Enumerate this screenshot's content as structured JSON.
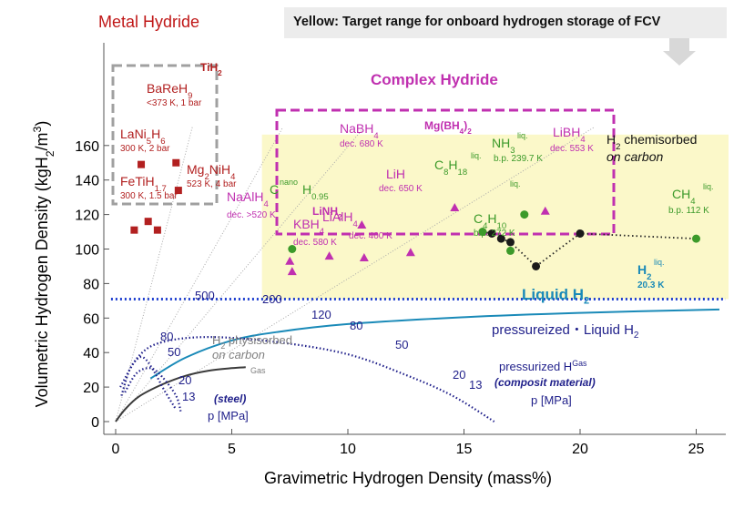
{
  "banner": {
    "text": "Yellow: Target range for onboard hydrogen storage of FCV"
  },
  "titles": {
    "metal_hydride": "Metal Hydride",
    "complex_hydride": "Complex Hydride",
    "liquid_h2": "Liquid H",
    "liquid_h2_sub": "2",
    "pressurized_liquid_prefix": "pressureized・Liquid H",
    "pressurized_liquid_sub": "2"
  },
  "colors": {
    "metal": "#b22020",
    "complex": "#c030b0",
    "green": "#3c9a2a",
    "navy": "#1f1f8a",
    "liquid": "#1a8ab8",
    "target_fill": "#fbf8c9",
    "target_line": "#1f3fd0",
    "physisorbed": "#808080"
  },
  "chart_data": {
    "type": "scatter",
    "xlabel": "Gravimetric Hydrogen Density (mass%)",
    "ylabel": "Volumetric Hydrogen Density (kgH2/m3)",
    "ylabel_parts": {
      "a": "Volumetric Hydrogen Density (kgH",
      "b": "2",
      "c": "/m",
      "d": "3",
      "e": ")"
    },
    "xlim": [
      0,
      26
    ],
    "ylim": [
      0,
      160
    ],
    "xticks": [
      0,
      5,
      10,
      15,
      20,
      25
    ],
    "yticks": [
      0,
      20,
      40,
      60,
      80,
      100,
      120,
      140,
      160
    ],
    "target_region": {
      "x": [
        6.3,
        26
      ],
      "y": [
        71,
        160
      ]
    },
    "target_line_y": 71,
    "metal_hydrides": [
      {
        "x": 2.6,
        "y": 150,
        "label": "TiH2"
      },
      {
        "x": 1.1,
        "y": 149,
        "label": "BaReH9"
      },
      {
        "x": 2.7,
        "y": 134,
        "label": "Mg2NiH4"
      },
      {
        "x": 1.4,
        "y": 116,
        "label": "LaNi5H6"
      },
      {
        "x": 0.8,
        "y": 111,
        "label": "FeTiH1.7"
      },
      {
        "x": 1.8,
        "y": 111,
        "label": "FeTiH1.7"
      }
    ],
    "complex_hydrides": [
      {
        "x": 10.6,
        "y": 114,
        "label": "NaBH4"
      },
      {
        "x": 14.6,
        "y": 124,
        "label": "Mg(BH4)2"
      },
      {
        "x": 18.5,
        "y": 122,
        "label": "LiBH4"
      },
      {
        "x": 12.7,
        "y": 98,
        "label": "LiH"
      },
      {
        "x": 10.7,
        "y": 95,
        "label": "LiAlH4"
      },
      {
        "x": 9.2,
        "y": 96,
        "label": "LiNH2"
      },
      {
        "x": 7.5,
        "y": 93,
        "label": "NaAlH4"
      },
      {
        "x": 7.6,
        "y": 87,
        "label": "KBH4"
      }
    ],
    "green_points": [
      {
        "x": 7.6,
        "y": 100,
        "label": "C nano H0.95"
      },
      {
        "x": 17.6,
        "y": 120,
        "label": "NH3"
      },
      {
        "x": 15.8,
        "y": 110,
        "label": "C8H18"
      },
      {
        "x": 17.0,
        "y": 99,
        "label": "C4H10"
      },
      {
        "x": 25.0,
        "y": 106,
        "label": "CH4"
      }
    ],
    "chemisorbed_curve": [
      [
        15.8,
        110
      ],
      [
        16.2,
        109
      ],
      [
        16.6,
        106
      ],
      [
        17.0,
        104
      ],
      [
        18.1,
        90
      ],
      [
        20.0,
        109
      ],
      [
        25.0,
        106
      ]
    ],
    "black_points": [
      [
        16.2,
        109
      ],
      [
        16.6,
        106
      ],
      [
        17.0,
        104
      ],
      [
        18.1,
        90
      ],
      [
        20.0,
        109
      ]
    ],
    "liquid_curve": [
      [
        1.5,
        25
      ],
      [
        3,
        37
      ],
      [
        5,
        47
      ],
      [
        7,
        52
      ],
      [
        10,
        56.5
      ],
      [
        15,
        60.5
      ],
      [
        20,
        63
      ],
      [
        26,
        65
      ]
    ],
    "steel_curve": [
      [
        0,
        0
      ],
      [
        0.4,
        7
      ],
      [
        1,
        14.5
      ],
      [
        2,
        21.5
      ],
      [
        3,
        26.5
      ],
      [
        4,
        29.5
      ],
      [
        5,
        31
      ],
      [
        5.6,
        31.5
      ]
    ],
    "bubble_curves": [
      [
        [
          0.25,
          15
        ],
        [
          0.6,
          30
        ],
        [
          1.0,
          37
        ],
        [
          1.3,
          36
        ],
        [
          1.7,
          28
        ],
        [
          2.1,
          18
        ],
        [
          2.6,
          7
        ]
      ],
      [
        [
          0.4,
          17
        ],
        [
          0.9,
          28
        ],
        [
          1.5,
          31
        ],
        [
          2.0,
          26
        ],
        [
          2.6,
          15
        ],
        [
          2.8,
          6
        ]
      ],
      [
        [
          0.2,
          20
        ],
        [
          1.0,
          38
        ],
        [
          2.0,
          46
        ],
        [
          4.0,
          49
        ],
        [
          7.0,
          46
        ],
        [
          10.0,
          39
        ],
        [
          12.5,
          27
        ],
        [
          14.5,
          15
        ],
        [
          16.3,
          0
        ]
      ]
    ],
    "labels": {
      "tih2": "TiH",
      "bareh9": "BaReH",
      "bareh9_cond": "<373 K, 1 bar",
      "lani5h6": "LaNi",
      "lani5h6_cond": "300 K, 2 bar",
      "fetih": "FeTiH",
      "fetih_cond": "300 K, 1.5 bar",
      "mg2nih4": "Mg",
      "mg2nih4_cond": "523 K, 4 bar",
      "nabh4": "NaBH",
      "nabh4_cond": "dec. 680 K",
      "mgbh4": "Mg(BH",
      "libh4": "LiBH",
      "libh4_cond": "dec. 553 K",
      "lih": "LiH",
      "lih_cond": "dec. 650 K",
      "lialh4": "LiAlH",
      "lialh4_cond": "dec. 400 K",
      "linh2": "LiNH",
      "naalh4": "NaAlH",
      "naalh4_cond": "dec. >520 K",
      "kbh4": "KBH",
      "kbh4_cond": "dec. 580 K",
      "c_nano": "C",
      "nano": "nano",
      "h095": "H",
      "nh3": "NH",
      "nh3_cond": "b.p. 239.7 K",
      "c8h18": "C",
      "c4h10": "C",
      "c4h10_cond": "b.p. 272 K",
      "ch4": "CH",
      "ch4_cond": "b.p. 112 K",
      "liq": "liq.",
      "chemisorbed_1": "H",
      "chemisorbed_2": " chemisorbed",
      "chemisorbed_3": "on carbon",
      "h2_liq": "H",
      "h2_liq_cond": "20.3 K",
      "physisorbed_1": "H",
      "physisorbed_2": " physisorbed",
      "physisorbed_3": "on carbon",
      "gas": "Gas",
      "pressurized_gas": "pressurized H",
      "gas_sup": "Gas",
      "composit": "(composit material)",
      "p_mpa": "p [MPa]",
      "steel": "(steel)",
      "p500": "500",
      "p200": "200",
      "p120": "120",
      "p80": "80",
      "p50": "50",
      "p20": "20",
      "p13": "13",
      "s80": "80",
      "s50": "50",
      "s20": "20",
      "s13": "13"
    }
  }
}
